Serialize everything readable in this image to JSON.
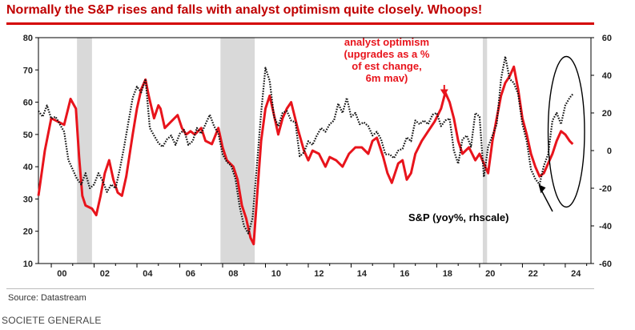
{
  "title": "Normally the S&P rises and falls with analyst optimism quite closely. Whoops!",
  "source": "Source: Datastream",
  "credit": "SOCIETE GENERALE",
  "colors": {
    "optimism": "#e8141c",
    "sp": "#111111",
    "recession": "#d9d9d9",
    "title": "#c00000"
  },
  "chart_data": {
    "type": "line",
    "x_range": [
      1999.4,
      2025.2
    ],
    "x_ticks": [
      {
        "value": 2000,
        "label": "00"
      },
      {
        "value": 2002,
        "label": "02"
      },
      {
        "value": 2004,
        "label": "04"
      },
      {
        "value": 2006,
        "label": "06"
      },
      {
        "value": 2008,
        "label": "08"
      },
      {
        "value": 2010,
        "label": "10"
      },
      {
        "value": 2012,
        "label": "12"
      },
      {
        "value": 2014,
        "label": "14"
      },
      {
        "value": 2016,
        "label": "16"
      },
      {
        "value": 2018,
        "label": "18"
      },
      {
        "value": 2020,
        "label": "20"
      },
      {
        "value": 2022,
        "label": "22"
      },
      {
        "value": 2024,
        "label": "24"
      }
    ],
    "left_axis": {
      "range": [
        10,
        80
      ],
      "ticks": [
        "10",
        "20",
        "30",
        "40",
        "50",
        "60",
        "70",
        "80"
      ]
    },
    "right_axis": {
      "range": [
        -60,
        60
      ],
      "ticks": [
        "-60",
        "-40",
        "-20",
        "0",
        "20",
        "40",
        "60"
      ]
    },
    "recessions": [
      [
        2001.2,
        2001.9
      ],
      [
        2007.9,
        2009.5
      ],
      [
        2020.15,
        2020.35
      ]
    ],
    "series": [
      {
        "name": "analyst optimism (upgrades as a % of est change, 6m mav)",
        "axis": "left",
        "style": "solid-red",
        "points": [
          [
            1999.4,
            31
          ],
          [
            1999.7,
            45
          ],
          [
            2000.0,
            55
          ],
          [
            2000.3,
            54
          ],
          [
            2000.6,
            53
          ],
          [
            2000.9,
            61
          ],
          [
            2001.15,
            58
          ],
          [
            2001.3,
            43
          ],
          [
            2001.45,
            31
          ],
          [
            2001.6,
            28
          ],
          [
            2001.9,
            27
          ],
          [
            2002.1,
            25
          ],
          [
            2002.3,
            31
          ],
          [
            2002.5,
            38
          ],
          [
            2002.7,
            42
          ],
          [
            2002.9,
            36
          ],
          [
            2003.1,
            32
          ],
          [
            2003.3,
            31
          ],
          [
            2003.5,
            37
          ],
          [
            2003.8,
            50
          ],
          [
            2004.0,
            58
          ],
          [
            2004.2,
            64
          ],
          [
            2004.4,
            67
          ],
          [
            2004.55,
            62
          ],
          [
            2004.8,
            55
          ],
          [
            2005.0,
            59
          ],
          [
            2005.1,
            58
          ],
          [
            2005.3,
            52
          ],
          [
            2005.6,
            54
          ],
          [
            2005.9,
            56
          ],
          [
            2006.1,
            52
          ],
          [
            2006.3,
            50
          ],
          [
            2006.5,
            51
          ],
          [
            2006.7,
            50
          ],
          [
            2007.0,
            52
          ],
          [
            2007.2,
            48
          ],
          [
            2007.5,
            47
          ],
          [
            2007.8,
            52
          ],
          [
            2008.0,
            46
          ],
          [
            2008.2,
            42
          ],
          [
            2008.5,
            40
          ],
          [
            2008.7,
            36
          ],
          [
            2008.9,
            28
          ],
          [
            2009.1,
            24
          ],
          [
            2009.3,
            18
          ],
          [
            2009.45,
            16
          ],
          [
            2009.6,
            30
          ],
          [
            2009.8,
            48
          ],
          [
            2010.0,
            58
          ],
          [
            2010.2,
            62
          ],
          [
            2010.4,
            56
          ],
          [
            2010.6,
            50
          ],
          [
            2010.8,
            55
          ],
          [
            2011.0,
            58
          ],
          [
            2011.2,
            60
          ],
          [
            2011.5,
            52
          ],
          [
            2011.8,
            45
          ],
          [
            2012.0,
            42
          ],
          [
            2012.2,
            45
          ],
          [
            2012.5,
            44
          ],
          [
            2012.8,
            40
          ],
          [
            2013.0,
            43
          ],
          [
            2013.3,
            42
          ],
          [
            2013.6,
            40
          ],
          [
            2013.9,
            44
          ],
          [
            2014.2,
            46
          ],
          [
            2014.5,
            46
          ],
          [
            2014.8,
            44
          ],
          [
            2015.0,
            48
          ],
          [
            2015.2,
            49
          ],
          [
            2015.5,
            43
          ],
          [
            2015.7,
            38
          ],
          [
            2015.9,
            35
          ],
          [
            2016.2,
            41
          ],
          [
            2016.4,
            42
          ],
          [
            2016.6,
            36
          ],
          [
            2016.8,
            38
          ],
          [
            2017.0,
            44
          ],
          [
            2017.3,
            48
          ],
          [
            2017.6,
            51
          ],
          [
            2017.9,
            54
          ],
          [
            2018.2,
            58
          ],
          [
            2018.4,
            63
          ],
          [
            2018.6,
            60
          ],
          [
            2018.8,
            55
          ],
          [
            2019.0,
            48
          ],
          [
            2019.2,
            44
          ],
          [
            2019.5,
            46
          ],
          [
            2019.8,
            42
          ],
          [
            2020.0,
            44
          ],
          [
            2020.2,
            41
          ],
          [
            2020.4,
            38
          ],
          [
            2020.6,
            48
          ],
          [
            2020.8,
            55
          ],
          [
            2021.0,
            62
          ],
          [
            2021.2,
            66
          ],
          [
            2021.4,
            68
          ],
          [
            2021.6,
            71
          ],
          [
            2021.8,
            64
          ],
          [
            2022.0,
            55
          ],
          [
            2022.2,
            50
          ],
          [
            2022.4,
            44
          ],
          [
            2022.6,
            40
          ],
          [
            2022.8,
            37
          ],
          [
            2023.0,
            38
          ],
          [
            2023.2,
            41
          ],
          [
            2023.4,
            44
          ],
          [
            2023.6,
            48
          ],
          [
            2023.8,
            51
          ],
          [
            2024.0,
            50
          ],
          [
            2024.2,
            48
          ],
          [
            2024.35,
            47
          ]
        ]
      },
      {
        "name": "S&P (yoy%, rhscale)",
        "axis": "right",
        "style": "dotted-black",
        "points": [
          [
            1999.4,
            21
          ],
          [
            1999.6,
            18
          ],
          [
            1999.8,
            24
          ],
          [
            2000.0,
            17
          ],
          [
            2000.2,
            18
          ],
          [
            2000.4,
            14
          ],
          [
            2000.6,
            10
          ],
          [
            2000.8,
            -5
          ],
          [
            2001.0,
            -10
          ],
          [
            2001.2,
            -15
          ],
          [
            2001.4,
            -18
          ],
          [
            2001.6,
            -12
          ],
          [
            2001.8,
            -20
          ],
          [
            2002.0,
            -18
          ],
          [
            2002.2,
            -12
          ],
          [
            2002.4,
            -16
          ],
          [
            2002.6,
            -22
          ],
          [
            2002.8,
            -18
          ],
          [
            2003.0,
            -20
          ],
          [
            2003.2,
            -10
          ],
          [
            2003.4,
            2
          ],
          [
            2003.6,
            15
          ],
          [
            2003.8,
            28
          ],
          [
            2004.0,
            34
          ],
          [
            2004.2,
            31
          ],
          [
            2004.4,
            38
          ],
          [
            2004.6,
            12
          ],
          [
            2004.8,
            8
          ],
          [
            2005.0,
            4
          ],
          [
            2005.2,
            2
          ],
          [
            2005.4,
            6
          ],
          [
            2005.6,
            8
          ],
          [
            2005.8,
            3
          ],
          [
            2006.0,
            9
          ],
          [
            2006.2,
            11
          ],
          [
            2006.4,
            3
          ],
          [
            2006.6,
            5
          ],
          [
            2006.8,
            12
          ],
          [
            2007.0,
            9
          ],
          [
            2007.2,
            14
          ],
          [
            2007.4,
            19
          ],
          [
            2007.6,
            13
          ],
          [
            2007.8,
            9
          ],
          [
            2008.0,
            -2
          ],
          [
            2008.2,
            -6
          ],
          [
            2008.4,
            -8
          ],
          [
            2008.6,
            -15
          ],
          [
            2008.8,
            -30
          ],
          [
            2009.0,
            -40
          ],
          [
            2009.2,
            -44
          ],
          [
            2009.4,
            -36
          ],
          [
            2009.6,
            -8
          ],
          [
            2009.8,
            20
          ],
          [
            2010.0,
            44
          ],
          [
            2010.2,
            37
          ],
          [
            2010.4,
            18
          ],
          [
            2010.6,
            13
          ],
          [
            2010.8,
            20
          ],
          [
            2011.0,
            21
          ],
          [
            2011.2,
            16
          ],
          [
            2011.4,
            15
          ],
          [
            2011.6,
            -3
          ],
          [
            2011.8,
            -1
          ],
          [
            2012.0,
            5
          ],
          [
            2012.2,
            3
          ],
          [
            2012.4,
            8
          ],
          [
            2012.6,
            12
          ],
          [
            2012.8,
            10
          ],
          [
            2013.0,
            14
          ],
          [
            2013.2,
            16
          ],
          [
            2013.4,
            25
          ],
          [
            2013.6,
            20
          ],
          [
            2013.8,
            28
          ],
          [
            2014.0,
            18
          ],
          [
            2014.2,
            20
          ],
          [
            2014.4,
            14
          ],
          [
            2014.6,
            15
          ],
          [
            2014.8,
            13
          ],
          [
            2015.0,
            8
          ],
          [
            2015.2,
            10
          ],
          [
            2015.4,
            6
          ],
          [
            2015.6,
            -2
          ],
          [
            2015.8,
            -2
          ],
          [
            2016.0,
            -4
          ],
          [
            2016.2,
            0
          ],
          [
            2016.4,
            1
          ],
          [
            2016.6,
            7
          ],
          [
            2016.8,
            5
          ],
          [
            2017.0,
            16
          ],
          [
            2017.2,
            14
          ],
          [
            2017.4,
            16
          ],
          [
            2017.6,
            14
          ],
          [
            2017.8,
            19
          ],
          [
            2018.0,
            20
          ],
          [
            2018.2,
            13
          ],
          [
            2018.4,
            16
          ],
          [
            2018.6,
            17
          ],
          [
            2018.8,
            0
          ],
          [
            2019.0,
            -7
          ],
          [
            2019.2,
            6
          ],
          [
            2019.4,
            8
          ],
          [
            2019.6,
            2
          ],
          [
            2019.8,
            20
          ],
          [
            2020.0,
            18
          ],
          [
            2020.2,
            -14
          ],
          [
            2020.4,
            2
          ],
          [
            2020.6,
            8
          ],
          [
            2020.8,
            14
          ],
          [
            2021.0,
            38
          ],
          [
            2021.2,
            50
          ],
          [
            2021.4,
            38
          ],
          [
            2021.6,
            36
          ],
          [
            2021.8,
            30
          ],
          [
            2022.0,
            14
          ],
          [
            2022.2,
            5
          ],
          [
            2022.4,
            -10
          ],
          [
            2022.6,
            -15
          ],
          [
            2022.8,
            -18
          ],
          [
            2023.0,
            -8
          ],
          [
            2023.2,
            -2
          ],
          [
            2023.4,
            16
          ],
          [
            2023.6,
            20
          ],
          [
            2023.8,
            14
          ],
          [
            2024.0,
            24
          ],
          [
            2024.2,
            28
          ],
          [
            2024.35,
            30
          ]
        ]
      }
    ],
    "annotations": {
      "optimism_label_lines": [
        "analyst optimism",
        "(upgrades as a %",
        "of est change,",
        "6m mav)"
      ],
      "sp_label": "S&P (yoy%, rhscale)",
      "optimism_arrow_point": [
        2018.35,
        62
      ],
      "sp_arrow_point": [
        2022.75,
        -18
      ],
      "circle_center": [
        2024.05,
        10
      ],
      "circle_radii_data": [
        0.85,
        40
      ]
    }
  }
}
